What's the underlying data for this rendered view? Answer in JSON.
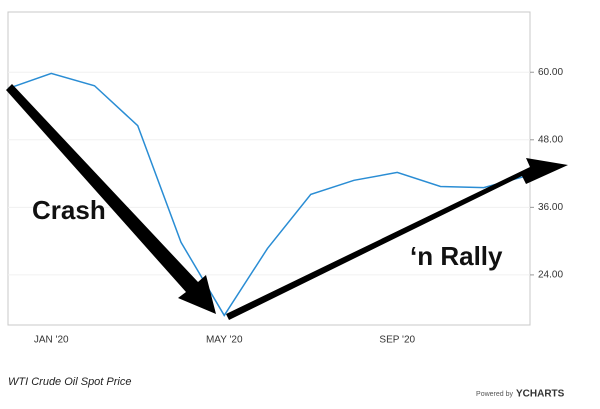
{
  "chart_data": {
    "type": "line",
    "categories": [
      null,
      "JAN '20",
      null,
      null,
      null,
      "MAY '20",
      null,
      null,
      null,
      "SEP '20",
      null,
      null,
      null
    ],
    "series": [
      {
        "name": "WTI Crude Oil Spot Price",
        "color": "#2a8dd4",
        "values": [
          57.1,
          59.8,
          57.6,
          50.5,
          29.8,
          16.8,
          28.7,
          38.3,
          40.8,
          42.2,
          39.7,
          39.5,
          41.6
        ]
      }
    ],
    "ylim": [
      15.1,
      70.7
    ],
    "yticks": [
      {
        "value": 24,
        "label": "24.00"
      },
      {
        "value": 36,
        "label": "36.00"
      },
      {
        "value": 48,
        "label": "48.00"
      },
      {
        "value": 60,
        "label": "60.00"
      }
    ],
    "grid": true,
    "annotations": [
      "Crash",
      "‘n Rally"
    ],
    "footer": {
      "title": "WTI Crude Oil Spot Price",
      "powered": "Powered by",
      "brand": "YCHARTS"
    }
  }
}
